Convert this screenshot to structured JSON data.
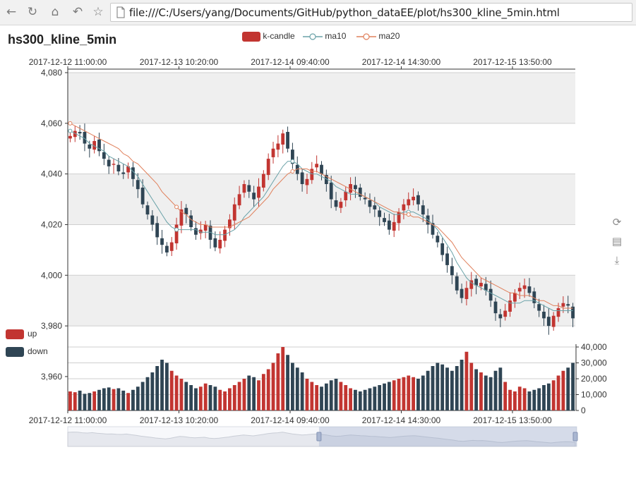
{
  "browser": {
    "url": "file:///C:/Users/yang/Documents/GitHub/python_dataEE/plot/hs300_kline_5min.html",
    "icons": [
      "back-icon",
      "reload-icon",
      "home-icon",
      "undo-icon",
      "star-icon",
      "page-icon"
    ]
  },
  "chart_title": "hs300_kline_5min",
  "legend": [
    {
      "label": "k-candle",
      "color": "#c23531"
    },
    {
      "label": "ma10",
      "color": "#6aa2a8"
    },
    {
      "label": "ma20",
      "color": "#e0805c"
    }
  ],
  "visual_map": [
    {
      "label": "up",
      "color": "#c23531"
    },
    {
      "label": "down",
      "color": "#2f4554"
    }
  ],
  "toolbox": [
    "restore-icon",
    "data-view-icon",
    "save-image-icon"
  ],
  "colors": {
    "up": "#c23531",
    "down": "#2f4554",
    "ma10": "#6aa2a8",
    "ma20": "#e0805c"
  },
  "chart_data": {
    "type": "candlestick",
    "title": "hs300_kline_5min",
    "x_tick_labels": [
      "2017-12-12 11:00:00",
      "2017-12-13 10:20:00",
      "2017-12-14 09:40:00",
      "2017-12-14 14:30:00",
      "2017-12-15 13:50:00"
    ],
    "price_axis": {
      "ticks": [
        "4,080",
        "4,060",
        "4,040",
        "4,020",
        "4,000",
        "3,980",
        "3,960"
      ],
      "ylim": [
        3955,
        4080
      ]
    },
    "volume_axis": {
      "ticks": [
        "40,000",
        "30,000",
        "20,000",
        "10,000",
        "0"
      ],
      "ylim": [
        0,
        40000
      ]
    },
    "grid_bands": true,
    "datazoom": {
      "start_fraction": 0.495,
      "end_fraction": 1.0
    },
    "close": [
      4055,
      4057,
      4056,
      4052,
      4050,
      4053,
      4049,
      4046,
      4043,
      4044,
      4041,
      4040,
      4043,
      4038,
      4034,
      4028,
      4024,
      4020,
      4015,
      4012,
      4009,
      4013,
      4020,
      4026,
      4024,
      4019,
      4016,
      4018,
      4020,
      4014,
      4011,
      4014,
      4018,
      4022,
      4028,
      4032,
      4036,
      4033,
      4030,
      4035,
      4040,
      4046,
      4050,
      4052,
      4056,
      4050,
      4044,
      4040,
      4036,
      4038,
      4042,
      4044,
      4040,
      4036,
      4030,
      4027,
      4029,
      4033,
      4036,
      4034,
      4031,
      4030,
      4027,
      4026,
      4023,
      4021,
      4018,
      4021,
      4025,
      4028,
      4030,
      4031,
      4028,
      4024,
      4020,
      4016,
      4013,
      4008,
      4004,
      4000,
      3994,
      3991,
      3995,
      3998,
      3996,
      3997,
      3994,
      3990,
      3985,
      3983,
      3986,
      3990,
      3993,
      3995,
      3996,
      3993,
      3989,
      3986,
      3983,
      3980,
      3984,
      3987,
      3989,
      3988,
      3983
    ],
    "ma10": [
      4057,
      4056,
      4055,
      4054,
      4052,
      4051,
      4050,
      4049,
      4047,
      4046,
      4045,
      4044,
      4043,
      4041,
      4039,
      4036,
      4033,
      4030,
      4027,
      4024,
      4021,
      4019,
      4018,
      4018,
      4018,
      4018,
      4018,
      4017,
      4017,
      4017,
      4016,
      4016,
      4016,
      4017,
      4018,
      4020,
      4023,
      4025,
      4027,
      4029,
      4031,
      4034,
      4037,
      4040,
      4043,
      4045,
      4045,
      4044,
      4042,
      4041,
      4040,
      4040,
      4039,
      4038,
      4037,
      4035,
      4034,
      4033,
      4032,
      4032,
      4032,
      4031,
      4030,
      4029,
      4027,
      4026,
      4025,
      4024,
      4024,
      4025,
      4025,
      4025,
      4024,
      4023,
      4022,
      4020,
      4018,
      4015,
      4012,
      4009,
      4005,
      4002,
      3999,
      3997,
      3996,
      3995,
      3994,
      3993,
      3992,
      3991,
      3990,
      3989,
      3989,
      3989,
      3990,
      3990,
      3990,
      3989,
      3988,
      3987,
      3986,
      3986,
      3986,
      3986,
      3986
    ],
    "ma20": [
      4060,
      4059,
      4058,
      4057,
      4056,
      4055,
      4054,
      4053,
      4052,
      4051,
      4050,
      4048,
      4047,
      4045,
      4044,
      4042,
      4040,
      4038,
      4036,
      4033,
      4031,
      4029,
      4027,
      4025,
      4024,
      4022,
      4021,
      4020,
      4020,
      4019,
      4019,
      4019,
      4019,
      4019,
      4020,
      4021,
      4022,
      4023,
      4025,
      4027,
      4029,
      4031,
      4034,
      4036,
      4038,
      4040,
      4041,
      4042,
      4042,
      4042,
      4041,
      4041,
      4040,
      4039,
      4038,
      4037,
      4036,
      4035,
      4034,
      4033,
      4032,
      4031,
      4030,
      4029,
      4028,
      4027,
      4026,
      4025,
      4025,
      4024,
      4024,
      4023,
      4023,
      4022,
      4021,
      4020,
      4019,
      4017,
      4015,
      4013,
      4010,
      4007,
      4005,
      4003,
      4001,
      3999,
      3998,
      3997,
      3996,
      3995,
      3994,
      3993,
      3993,
      3992,
      3992,
      3992,
      3991,
      3990,
      3990,
      3989,
      3988,
      3988,
      3987,
      3987,
      3987
    ],
    "volume": [
      12000,
      11500,
      12500,
      10500,
      11000,
      12000,
      13000,
      14000,
      14500,
      13500,
      14000,
      12500,
      11000,
      13000,
      15000,
      18000,
      21000,
      24000,
      28000,
      32000,
      30000,
      25000,
      22000,
      20000,
      18000,
      16000,
      14000,
      15000,
      17000,
      16000,
      15000,
      13000,
      12000,
      14000,
      16000,
      18000,
      20000,
      22000,
      21000,
      19000,
      23000,
      26000,
      30000,
      36000,
      40000,
      35000,
      30000,
      27000,
      24000,
      20000,
      18000,
      16000,
      15000,
      17000,
      19000,
      20000,
      18000,
      16000,
      14000,
      13000,
      12000,
      13000,
      14000,
      15000,
      16000,
      17000,
      18000,
      19000,
      20000,
      21000,
      22000,
      21000,
      20000,
      22000,
      25000,
      28000,
      30000,
      29000,
      27000,
      25000,
      28000,
      32000,
      37000,
      30000,
      26000,
      24000,
      22000,
      21000,
      25000,
      27000,
      18000,
      13000,
      12000,
      15000,
      14000,
      12000,
      13000,
      14000,
      16000,
      17000,
      19000,
      22000,
      25000,
      27000,
      30000
    ]
  }
}
